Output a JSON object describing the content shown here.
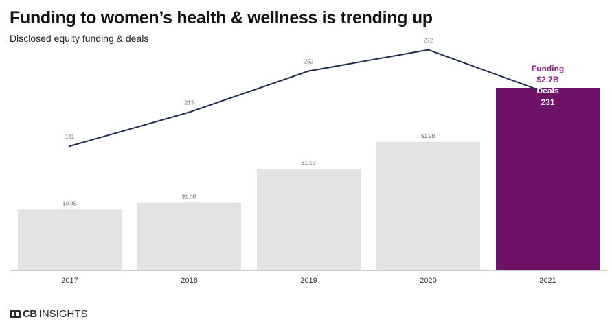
{
  "title": "Funding to women’s health & wellness is trending up",
  "subtitle": "Disclosed equity funding & deals",
  "brand": {
    "bold": "CB",
    "regular": "INSIGHTS"
  },
  "colors": {
    "bar_default": "#e3e3e3",
    "bar_highlight": "#6e1168",
    "line": "#1f2d4d",
    "label_muted": "#7a7a7a",
    "annotation_purple": "#8a1c87",
    "axis": "#9a9a9a"
  },
  "chart_data": {
    "type": "bar+line",
    "categories": [
      "2017",
      "2018",
      "2019",
      "2020",
      "2021"
    ],
    "series": [
      {
        "type": "bar",
        "values": [
          0.9,
          1.0,
          1.5,
          1.9,
          2.7
        ],
        "labels": [
          "$0.9B",
          "$1.0B",
          "$1.5B",
          "$1.9B",
          ""
        ],
        "highlight_index": 4
      },
      {
        "type": "line",
        "values": [
          181,
          213,
          252,
          272,
          231
        ],
        "labels": [
          "181",
          "213",
          "252",
          "272",
          ""
        ]
      }
    ],
    "annotation": {
      "funding_label": "Funding",
      "funding_value": "$2.7B",
      "deals_label": "Deals",
      "deals_value": "231"
    },
    "bar_ylim": [
      0,
      2.7
    ],
    "line_ylim": [
      0,
      272
    ],
    "grid": false,
    "legend": "none"
  }
}
